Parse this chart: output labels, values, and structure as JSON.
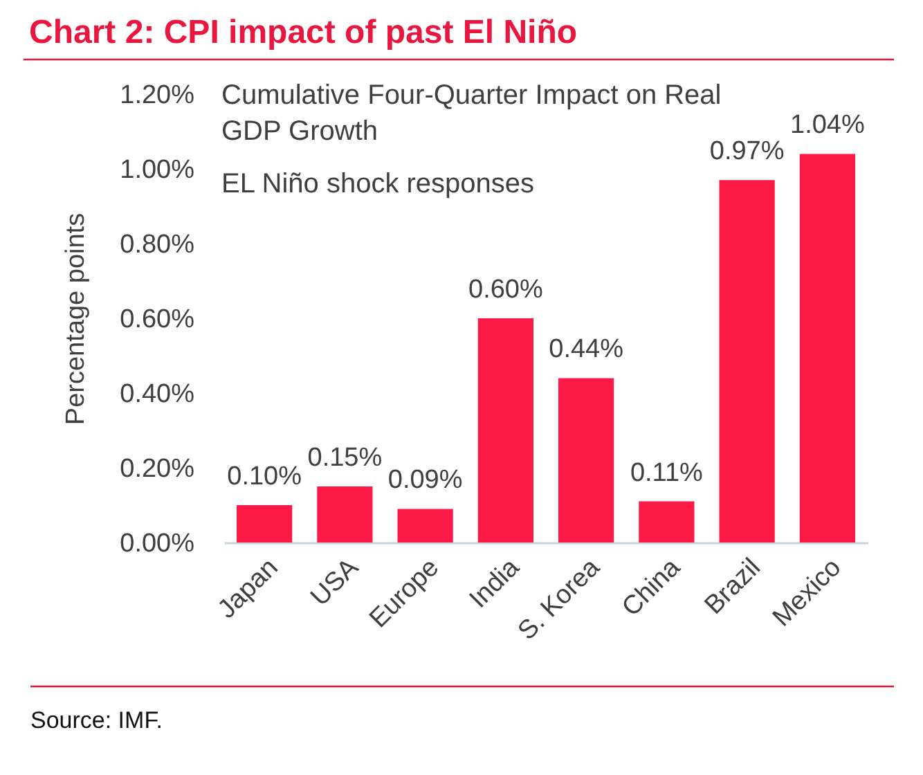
{
  "chart_data": {
    "type": "bar",
    "title": "Chart 2: CPI impact of past El Niño",
    "ylabel": "Percentage points",
    "categories": [
      "Japan",
      "USA",
      "Europe",
      "India",
      "S. Korea",
      "China",
      "Brazil",
      "Mexico"
    ],
    "values": [
      0.1,
      0.15,
      0.09,
      0.6,
      0.44,
      0.11,
      0.97,
      1.04
    ],
    "value_labels": [
      "0.10%",
      "0.15%",
      "0.09%",
      "0.60%",
      "0.44%",
      "0.11%",
      "0.97%",
      "1.04%"
    ],
    "color": "#fd1a47",
    "ylim": [
      0,
      1.2
    ],
    "yticks": [
      {
        "value": 0,
        "label": "0.00%"
      },
      {
        "value": 0.2,
        "label": "0.20%"
      },
      {
        "value": 0.4,
        "label": "0.40%"
      },
      {
        "value": 0.6,
        "label": "0.60%"
      },
      {
        "value": 0.8,
        "label": "0.80%"
      },
      {
        "value": 1.0,
        "label": "1.00%"
      },
      {
        "value": 1.2,
        "label": "1.20%"
      }
    ],
    "grid": false,
    "annotations": [
      "Cumulative Four-Quarter Impact on Real GDP Growth",
      "EL Niño shock responses",
      "Source: IMF."
    ]
  }
}
